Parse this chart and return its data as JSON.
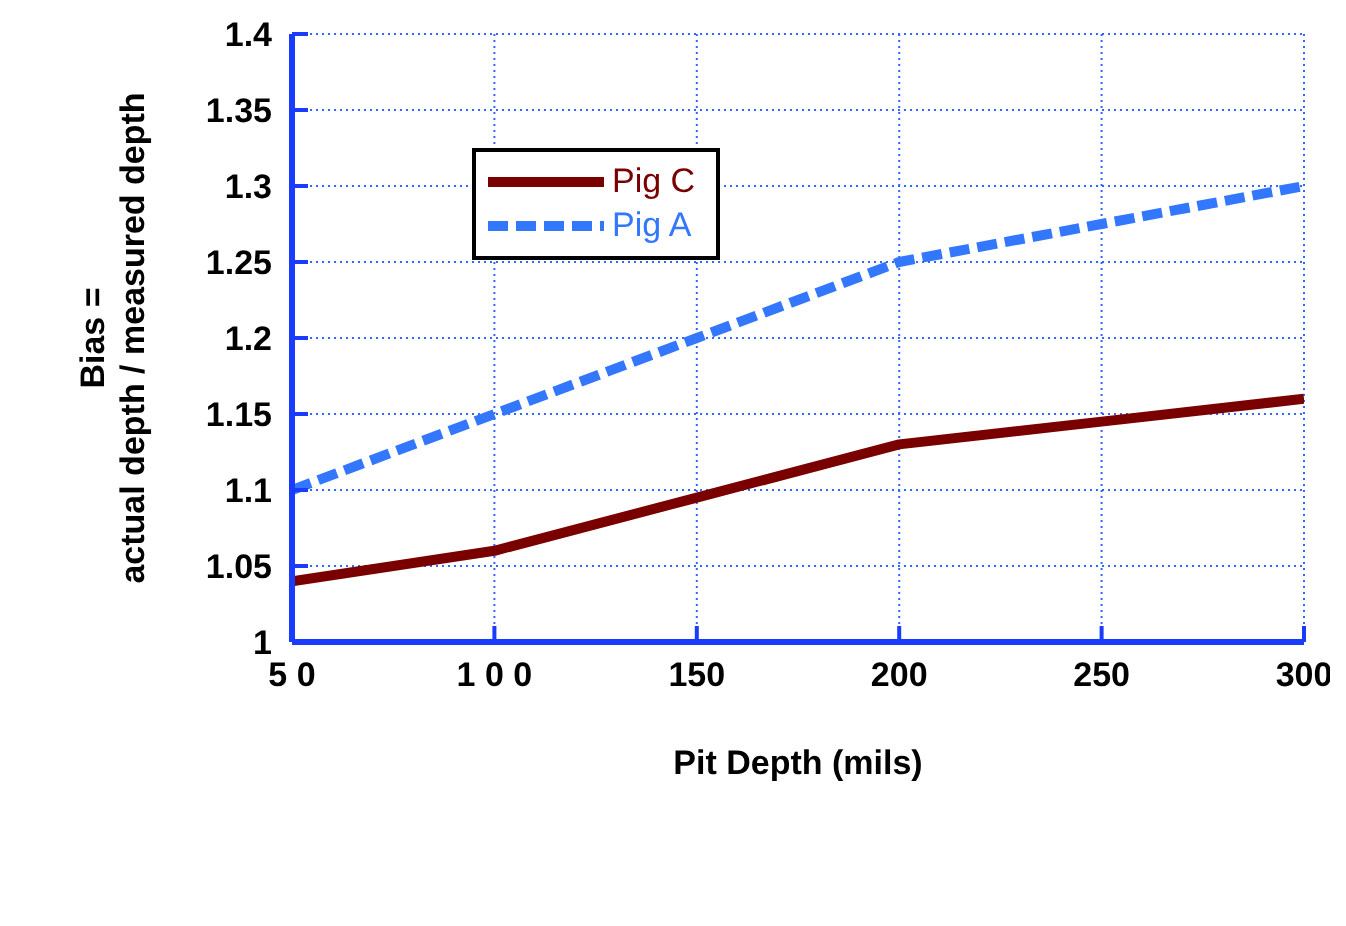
{
  "chart_data": {
    "type": "line",
    "xlabel": "Pit  Depth  (mils)",
    "ylabel": "Bias =\nactual  depth  /  measured  depth",
    "x": [
      50,
      100,
      150,
      200,
      250,
      300
    ],
    "series": [
      {
        "name": "Pig C",
        "color": "#7a0000",
        "line_style": "solid",
        "values": [
          1.04,
          1.06,
          1.095,
          1.13,
          1.145,
          1.16
        ]
      },
      {
        "name": "Pig A",
        "color": "#3377ff",
        "line_style": "dashed",
        "values": [
          1.1,
          1.15,
          1.2,
          1.25,
          1.275,
          1.3
        ]
      }
    ],
    "xlim": [
      50,
      300
    ],
    "xticks": [
      {
        "value": 50,
        "label": "5 0"
      },
      {
        "value": 100,
        "label": "1 0 0"
      },
      150,
      200,
      250,
      300
    ],
    "ylim": [
      1,
      1.4
    ],
    "yticks": [
      1,
      1.05,
      1.1,
      1.15,
      1.2,
      1.25,
      1.3,
      1.35,
      1.4
    ],
    "grid": true,
    "legend": "top left",
    "marker": "none"
  }
}
